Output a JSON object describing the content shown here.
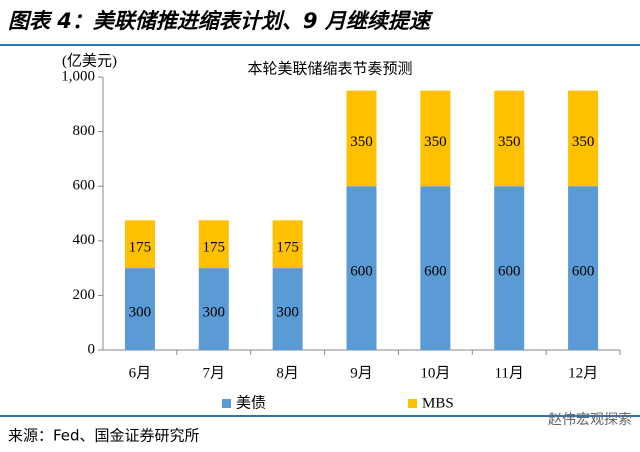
{
  "header": {
    "title": "图表 4：美联储推进缩表计划、9 月继续提速"
  },
  "chart_data": {
    "type": "stacked_bar",
    "title": "本轮美联储缩表节奏预测",
    "y_unit": "(亿美元)",
    "categories": [
      "6月",
      "7月",
      "8月",
      "9月",
      "10月",
      "11月",
      "12月"
    ],
    "series": [
      {
        "name": "美债",
        "color": "#5b9bd5",
        "values": [
          300,
          300,
          300,
          600,
          600,
          600,
          600
        ]
      },
      {
        "name": "MBS",
        "color": "#ffc000",
        "values": [
          175,
          175,
          175,
          350,
          350,
          350,
          350
        ]
      }
    ],
    "ylim": [
      0,
      1000
    ],
    "yticks": [
      0,
      200,
      400,
      600,
      800,
      {
        "value": 1000,
        "label": "1,000"
      }
    ]
  },
  "footer": {
    "source": "来源：Fed、国金证券研究所",
    "watermark": "赵伟宏观探索"
  }
}
